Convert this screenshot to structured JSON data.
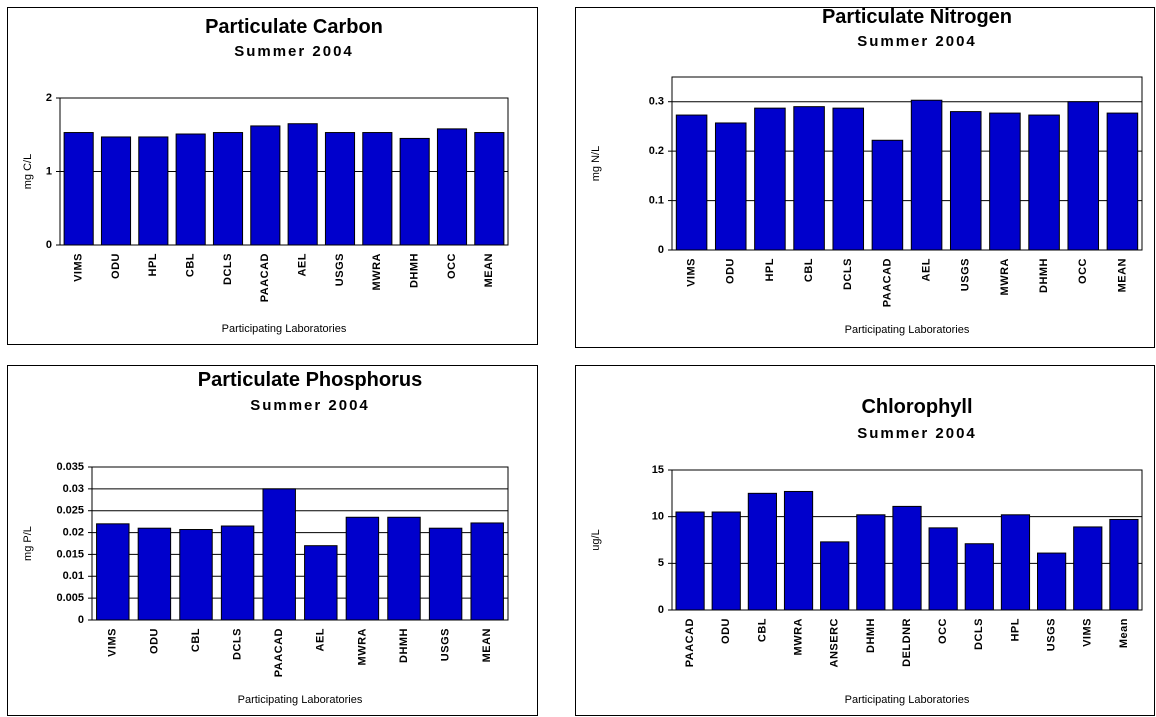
{
  "chart_data": [
    {
      "type": "bar",
      "title": "Particulate Carbon",
      "subtitle": "Summer 2004",
      "y_label": "mg C/L",
      "x_label": "Participating Laboratories",
      "categories": [
        "VIMS",
        "ODU",
        "HPL",
        "CBL",
        "DCLS",
        "PAACAD",
        "AEL",
        "USGS",
        "MWRA",
        "DHMH",
        "OCC",
        "MEAN"
      ],
      "values": [
        1.53,
        1.47,
        1.47,
        1.51,
        1.53,
        1.62,
        1.65,
        1.53,
        1.53,
        1.45,
        1.58,
        1.53
      ],
      "color": "#0000cc",
      "ylim": [
        0,
        2
      ],
      "yticks": [
        0,
        1,
        2
      ],
      "grid": true
    },
    {
      "type": "bar",
      "title": "Particulate Nitrogen",
      "subtitle": "Summer 2004",
      "y_label": "mg N/L",
      "x_label": "Participating Laboratories",
      "categories": [
        "VIMS",
        "ODU",
        "HPL",
        "CBL",
        "DCLS",
        "PAACAD",
        "AEL",
        "USGS",
        "MWRA",
        "DHMH",
        "OCC",
        "MEAN"
      ],
      "values": [
        0.273,
        0.257,
        0.287,
        0.29,
        0.287,
        0.222,
        0.303,
        0.28,
        0.277,
        0.273,
        0.3,
        0.277
      ],
      "color": "#0000cc",
      "ylim": [
        0,
        0.35
      ],
      "yticks": [
        0,
        0.1,
        0.2,
        0.3
      ],
      "grid": true
    },
    {
      "type": "bar",
      "title": "Particulate Phosphorus",
      "subtitle": "Summer 2004",
      "y_label": "mg P/L",
      "x_label": "Participating Laboratories",
      "categories": [
        "VIMS",
        "ODU",
        "CBL",
        "DCLS",
        "PAACAD",
        "AEL",
        "MWRA",
        "DHMH",
        "USGS",
        "MEAN"
      ],
      "values": [
        0.022,
        0.021,
        0.0207,
        0.0215,
        0.03,
        0.017,
        0.0235,
        0.0235,
        0.021,
        0.0222
      ],
      "color": "#0000cc",
      "ylim": [
        0,
        0.035
      ],
      "yticks": [
        0,
        0.005,
        0.01,
        0.015,
        0.02,
        0.025,
        0.03,
        0.035
      ],
      "grid": true
    },
    {
      "type": "bar",
      "title": "Chlorophyll",
      "subtitle": "Summer 2004",
      "y_label": "ug/L",
      "x_label": "Participating Laboratories",
      "categories": [
        "PAACAD",
        "ODU",
        "CBL",
        "MWRA",
        "ANSERC",
        "DHMH",
        "DELDNR",
        "OCC",
        "DCLS",
        "HPL",
        "USGS",
        "VIMS",
        "Mean"
      ],
      "values": [
        10.5,
        10.5,
        12.5,
        12.7,
        7.3,
        10.2,
        11.1,
        8.8,
        7.1,
        10.2,
        6.1,
        8.9,
        9.7
      ],
      "color": "#0000cc",
      "ylim": [
        0,
        15
      ],
      "yticks": [
        0,
        5,
        10,
        15
      ],
      "grid": true
    }
  ]
}
